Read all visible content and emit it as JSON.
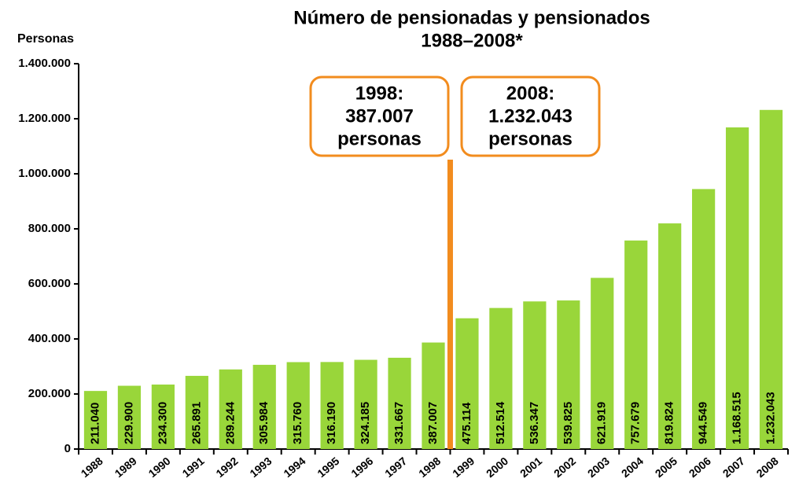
{
  "chart_data": {
    "type": "bar",
    "title": "Número de pensionadas y pensionados",
    "subtitle": "1988–2008*",
    "y_label": "Personas",
    "categories": [
      "1988",
      "1989",
      "1990",
      "1991",
      "1992",
      "1993",
      "1994",
      "1995",
      "1996",
      "1997",
      "1998",
      "1999",
      "2000",
      "2001",
      "2002",
      "2003",
      "2004",
      "2005",
      "2006",
      "2007",
      "2008"
    ],
    "values": [
      211040,
      229900,
      234300,
      265891,
      289244,
      305984,
      315760,
      316190,
      324185,
      331667,
      387007,
      475114,
      512514,
      536347,
      539825,
      621919,
      757679,
      819824,
      944549,
      1168515,
      1232043
    ],
    "value_labels": [
      "211.040",
      "229.900",
      "234.300",
      "265.891",
      "289.244",
      "305.984",
      "315.760",
      "316.190",
      "324.185",
      "331.667",
      "387.007",
      "475.114",
      "512.514",
      "536.347",
      "539.825",
      "621.919",
      "757.679",
      "819.824",
      "944.549",
      "1.168.515",
      "1.232.043"
    ],
    "color": "#99d63a",
    "ylim": [
      0,
      1400000
    ],
    "yticks": [
      0,
      {
        "value": 200000,
        "label": "200.000"
      },
      {
        "value": 400000,
        "label": "400.000"
      },
      {
        "value": 600000,
        "label": "600.000"
      },
      {
        "value": 800000,
        "label": "800.000"
      },
      {
        "value": 1000000,
        "label": "1.000.000"
      },
      {
        "value": 1200000,
        "label": "1.200.000"
      },
      {
        "value": 1400000,
        "label": "1.400.000"
      }
    ],
    "grid": false,
    "annotations": [
      {
        "lines": [
          "1998:",
          "387.007",
          "personas"
        ]
      },
      {
        "lines": [
          "2008:",
          "1.232.043",
          "personas"
        ]
      }
    ]
  }
}
